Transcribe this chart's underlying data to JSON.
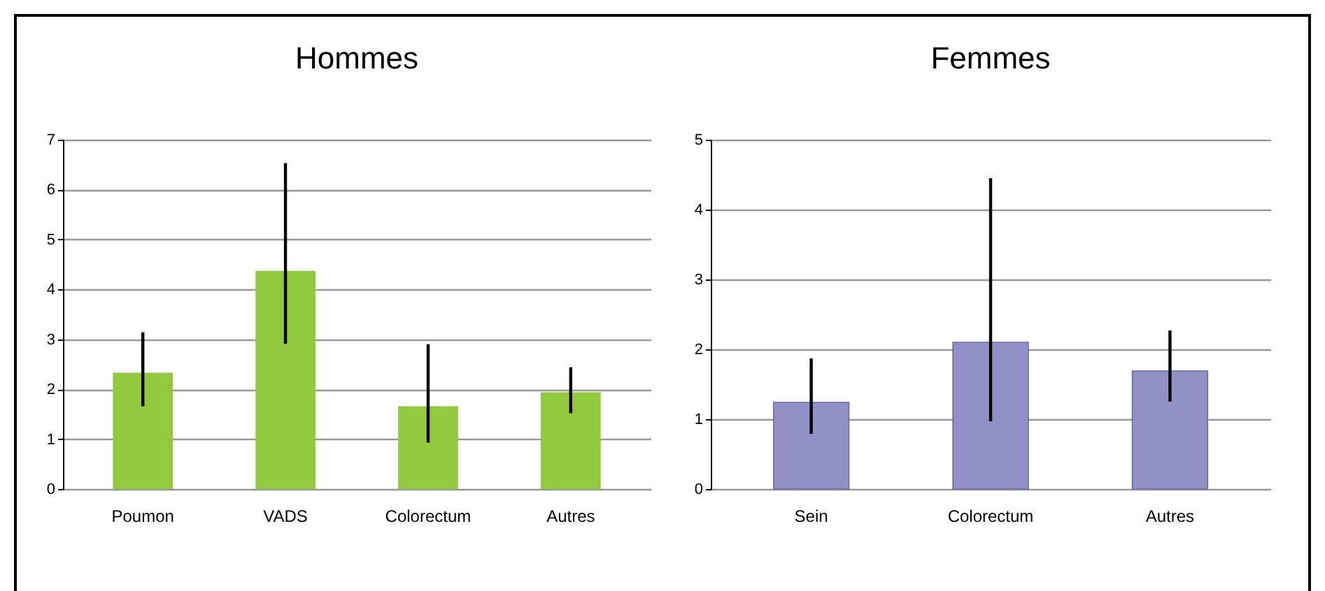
{
  "chart_data": [
    {
      "type": "bar",
      "title": "Hommes",
      "categories": [
        "Poumon",
        "VADS",
        "Colorectum",
        "Autres"
      ],
      "values": [
        2.33,
        4.37,
        1.66,
        1.94
      ],
      "color": "#92c83e",
      "errors": [
        [
          1.66,
          3.14
        ],
        [
          2.91,
          6.53
        ],
        [
          0.93,
          2.9
        ],
        [
          1.52,
          2.44
        ]
      ],
      "ylim": [
        0,
        7
      ],
      "yticks": [
        0,
        1,
        2,
        3,
        4,
        5,
        6,
        7
      ],
      "grid": "y"
    },
    {
      "type": "bar",
      "title": "Femmes",
      "categories": [
        "Sein",
        "Colorectum",
        "Autres"
      ],
      "values": [
        1.24,
        2.1,
        1.69
      ],
      "color": "#9191c8",
      "errors": [
        [
          0.79,
          1.87
        ],
        [
          0.97,
          4.45
        ],
        [
          1.25,
          2.27
        ]
      ],
      "ylim": [
        0,
        5
      ],
      "yticks": [
        0,
        1,
        2,
        3,
        4,
        5
      ],
      "grid": "y"
    }
  ]
}
